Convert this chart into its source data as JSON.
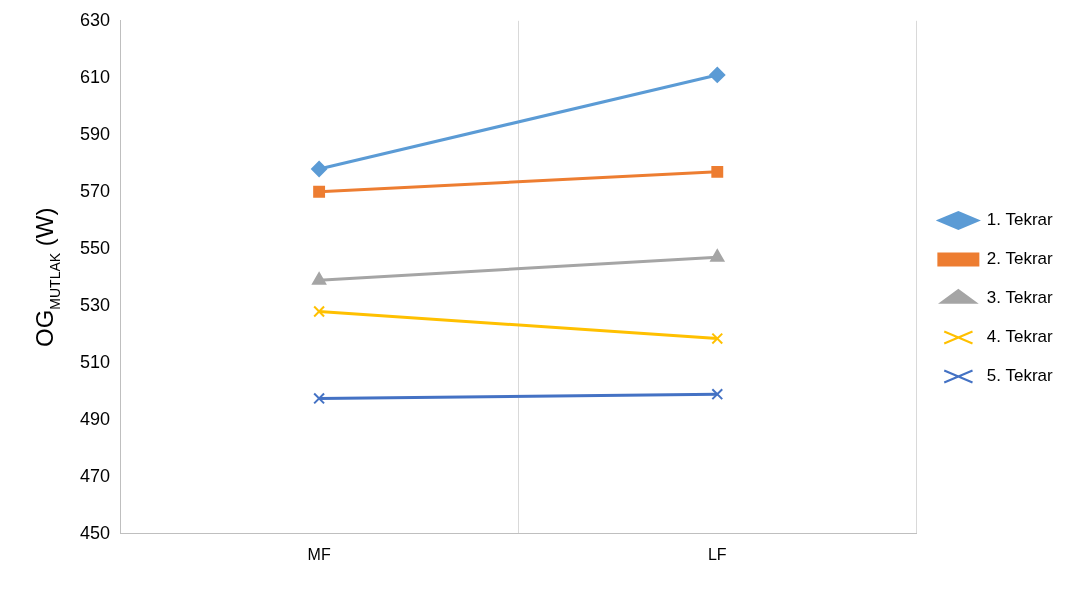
{
  "chart_data": {
    "type": "line",
    "ylabel": "OG$_{MUTLAK}$ (W)",
    "categories": [
      "MF",
      "LF"
    ],
    "series": [
      {
        "name": "1. Tekrar",
        "color": "#5b9bd5",
        "marker": "diamond",
        "values": [
          578,
          611
        ]
      },
      {
        "name": "2. Tekrar",
        "color": "#ed7d31",
        "marker": "square",
        "values": [
          570,
          577
        ]
      },
      {
        "name": "3. Tekrar",
        "color": "#a5a5a5",
        "marker": "triangle",
        "values": [
          539,
          547
        ]
      },
      {
        "name": "4. Tekrar",
        "color": "#ffc000",
        "marker": "cross",
        "values": [
          528,
          518.5
        ]
      },
      {
        "name": "5. Tekrar",
        "color": "#4472c4",
        "marker": "cross",
        "values": [
          497.5,
          499
        ]
      }
    ],
    "ylim": [
      450,
      630
    ],
    "yticks": [
      450,
      470,
      490,
      510,
      530,
      550,
      570,
      590,
      610,
      630
    ],
    "grid": "x",
    "legend": "right",
    "line_style": "solid"
  }
}
